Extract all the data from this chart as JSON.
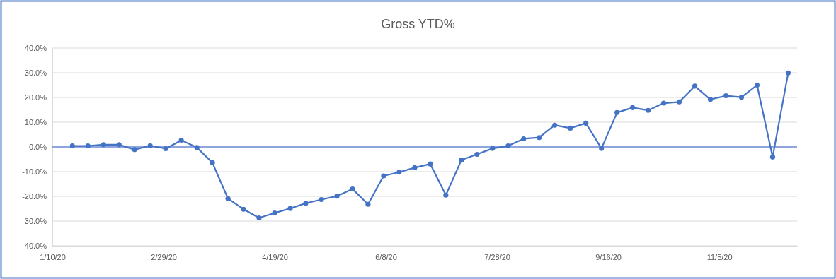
{
  "chart_data": {
    "type": "line",
    "title": "Gross YTD%",
    "x": [
      "2020-01-19",
      "2020-01-26",
      "2020-02-02",
      "2020-02-09",
      "2020-02-16",
      "2020-02-23",
      "2020-03-01",
      "2020-03-08",
      "2020-03-15",
      "2020-03-22",
      "2020-03-29",
      "2020-04-05",
      "2020-04-12",
      "2020-04-19",
      "2020-04-26",
      "2020-05-03",
      "2020-05-10",
      "2020-05-17",
      "2020-05-24",
      "2020-05-31",
      "2020-06-07",
      "2020-06-14",
      "2020-06-21",
      "2020-06-28",
      "2020-07-05",
      "2020-07-12",
      "2020-07-19",
      "2020-07-26",
      "2020-08-02",
      "2020-08-09",
      "2020-08-16",
      "2020-08-23",
      "2020-08-30",
      "2020-09-06",
      "2020-09-13",
      "2020-09-20",
      "2020-09-27",
      "2020-10-04",
      "2020-10-11",
      "2020-10-18",
      "2020-10-25",
      "2020-11-01",
      "2020-11-08",
      "2020-11-15",
      "2020-11-22",
      "2020-11-29",
      "2020-12-06"
    ],
    "series": [
      {
        "color": "#4472c4",
        "values": [
          0.4,
          0.4,
          0.9,
          0.9,
          -1.1,
          0.5,
          -0.7,
          2.7,
          -0.2,
          -6.4,
          -20.9,
          -25.2,
          -28.7,
          -26.7,
          -24.9,
          -22.8,
          -21.3,
          -19.9,
          -17.0,
          -23.2,
          -11.7,
          -10.2,
          -8.4,
          -6.9,
          -19.5,
          -5.3,
          -3.0,
          -0.6,
          0.4,
          3.3,
          3.8,
          8.8,
          7.6,
          9.6,
          -0.6,
          13.9,
          15.9,
          14.8,
          17.7,
          18.2,
          24.6,
          19.2,
          20.7,
          20.1,
          25.0,
          -4.1,
          29.9
        ]
      }
    ],
    "xlim": [
      "2020-01-10",
      "2020-12-10"
    ],
    "xticks": [
      {
        "value": "2020-01-10",
        "label": "1/10/20"
      },
      {
        "value": "2020-02-29",
        "label": "2/29/20"
      },
      {
        "value": "2020-04-19",
        "label": "4/19/20"
      },
      {
        "value": "2020-06-08",
        "label": "6/8/20"
      },
      {
        "value": "2020-07-28",
        "label": "7/28/20"
      },
      {
        "value": "2020-09-16",
        "label": "9/16/20"
      },
      {
        "value": "2020-11-05",
        "label": "11/5/20"
      }
    ],
    "ylim": [
      -40,
      40
    ],
    "yticks": [
      {
        "value": -40,
        "label": "-40.0%"
      },
      {
        "value": -30,
        "label": "-30.0%"
      },
      {
        "value": -20,
        "label": "-20.0%"
      },
      {
        "value": -10,
        "label": "-10.0%"
      },
      {
        "value": 0,
        "label": "0.0%"
      },
      {
        "value": 10,
        "label": "10.0%"
      },
      {
        "value": 20,
        "label": "20.0%"
      },
      {
        "value": 30,
        "label": "30.0%"
      },
      {
        "value": 40,
        "label": "40.0%"
      }
    ],
    "ref_lines": [
      {
        "axis": "y",
        "value": 0,
        "color": "#6f8fd8"
      }
    ],
    "grid": "y",
    "marker": "circle",
    "line_style": "solid",
    "legend": false
  }
}
